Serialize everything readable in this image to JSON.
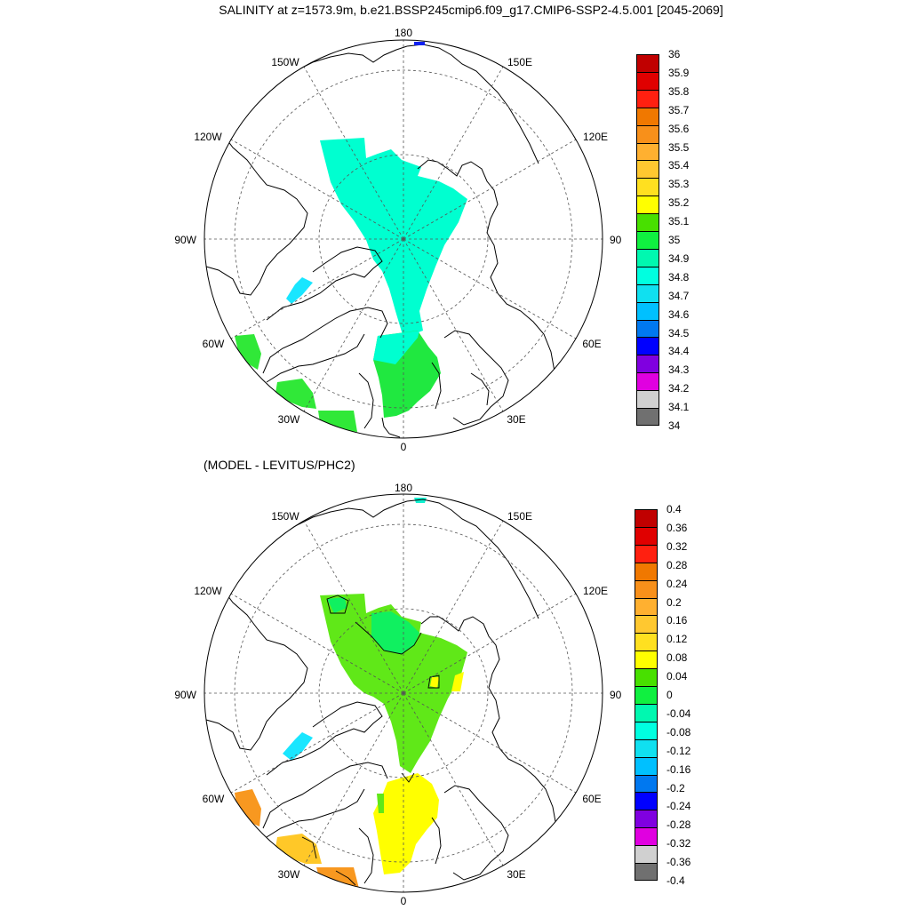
{
  "title": "SALINITY at z=1573.9m, b.e21.BSSP245cmip6.f09_g17.CMIP6-SSP2-4.5.001 [2045-2069]",
  "panel2_subtitle": "(MODEL - LEVITUS/PHC2)",
  "longitude_labels": {
    "lon_180": "180",
    "lon_150w": "150W",
    "lon_150e": "150E",
    "lon_120w": "120W",
    "lon_120e": "120E",
    "lon_90w": "90W",
    "lon_90e": "90E",
    "lon_60w": "60W",
    "lon_60e": "60E",
    "lon_30w": "30W",
    "lon_30e": "30E",
    "lon_0": "0"
  },
  "panel1_colorbar": {
    "labels": [
      "36",
      "35.9",
      "35.8",
      "35.7",
      "35.6",
      "35.5",
      "35.4",
      "35.3",
      "35.2",
      "35.1",
      "35",
      "34.9",
      "34.8",
      "34.7",
      "34.6",
      "34.5",
      "34.4",
      "34.3",
      "34.2",
      "34.1",
      "34"
    ],
    "colors": [
      "#c00000",
      "#e00000",
      "#ff2010",
      "#f07800",
      "#f8901a",
      "#ffb030",
      "#ffc830",
      "#ffe020",
      "#ffff00",
      "#48e000",
      "#10f040",
      "#00f8b0",
      "#00ffe0",
      "#10e0f0",
      "#00c0ff",
      "#0078f0",
      "#0000ff",
      "#8000e0",
      "#e000e0",
      "#d0d0d0",
      "#707070"
    ]
  },
  "panel2_colorbar": {
    "labels": [
      "0.4",
      "0.36",
      "0.32",
      "0.28",
      "0.24",
      "0.2",
      "0.16",
      "0.12",
      "0.08",
      "0.04",
      "0",
      "-0.04",
      "-0.08",
      "-0.12",
      "-0.16",
      "-0.2",
      "-0.24",
      "-0.28",
      "-0.32",
      "-0.36",
      "-0.4"
    ],
    "colors": [
      "#c00000",
      "#e00000",
      "#ff2010",
      "#f07800",
      "#f8901a",
      "#ffb030",
      "#ffc830",
      "#ffe020",
      "#ffff00",
      "#48e000",
      "#10f040",
      "#00f8b0",
      "#00ffe0",
      "#10e0f0",
      "#00c0ff",
      "#0078f0",
      "#0000ff",
      "#8000e0",
      "#e000e0",
      "#d0d0d0",
      "#707070"
    ]
  },
  "colors": {
    "p1_arctic": "#00ffd0",
    "p1_baffin": "#19e6ff",
    "p1_nordic": "#20e840",
    "p1_north_atlantic": "#30e838",
    "p2_arctic": "#60e818",
    "p2_makarov": "#10f060",
    "p2_nordic": "#ffff00",
    "p2_baffin": "#19e6ff",
    "p2_labrador": "#f89820",
    "p2_atlantic": "#ffc828",
    "p2_bering": "#10f0d0"
  }
}
